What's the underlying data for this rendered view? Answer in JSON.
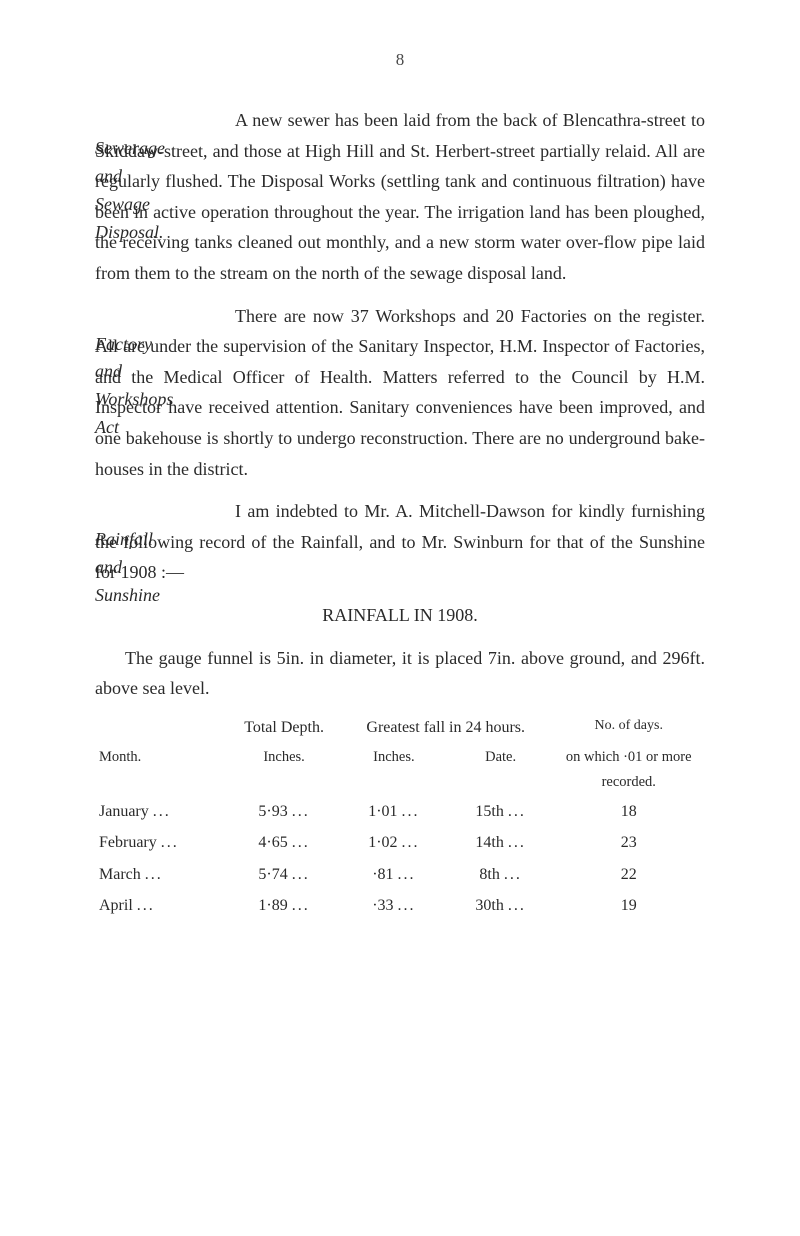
{
  "page_number": "8",
  "section1": {
    "margin": "Sewerage\nand\nSewage\nDisposal.",
    "text": "A new sewer has been laid from the back of Blencathra-street to Skiddaw-street, and those at High Hill and St. Herbert-street partially relaid. All are regularly flushed. The Dis­posal Works (settling tank and continuous filtration) have been in active operation throughout the year. The irrigation land has been ploughed, the receiving tanks cleaned out monthly, and a new storm water over-flow pipe laid from them to the stream on the north of the sewage disposal land."
  },
  "section2": {
    "margin": "Factory\nand\nWorkshops\nAct",
    "text": "There are now 37 Workshops and 20 Factories on the register. All are under the supervision of the Sanitary Inspector, H.M. Inspector of Factories, and the Medical Officer of Health. Matters referred to the Council by H.M. Inspector have received attention. Sanitary conveniences have been improved, and one bakehouse is shortly to undergo reconstruction. There are no underground bake­houses in the district."
  },
  "section3": {
    "margin": "Rainfall\nand\nSunshine",
    "text": "I am indebted to Mr. A. Mitchell-Dawson for kindly furnishing the following record of the Rainfall, and to Mr. Swinburn for that of the Sunshine for 1908 :—"
  },
  "heading": "RAINFALL IN 1908.",
  "gauge_text": "The gauge funnel is 5in. in diameter, it is placed 7in. above ground, and 296ft. above sea level.",
  "table": {
    "headers": {
      "month": "Month.",
      "total_depth": "Total Depth.",
      "greatest_fall": "Greatest fall in 24 hours.",
      "no_days": "No. of days.",
      "no_days_sub": "on which ·01 or more recorded."
    },
    "sub_headers": {
      "inches1": "Inches.",
      "inches2": "Inches.",
      "date": "Date."
    },
    "rows": [
      {
        "month": "January",
        "depth": "5·93",
        "fall": "1·01",
        "date": "15th",
        "days": "18"
      },
      {
        "month": "February",
        "depth": "4·65",
        "fall": "1·02",
        "date": "14th",
        "days": "23"
      },
      {
        "month": "March",
        "depth": "5·74",
        "fall": "·81",
        "date": "8th",
        "days": "22"
      },
      {
        "month": "April",
        "depth": "1·89",
        "fall": "·33",
        "date": "30th",
        "days": "19"
      }
    ]
  }
}
